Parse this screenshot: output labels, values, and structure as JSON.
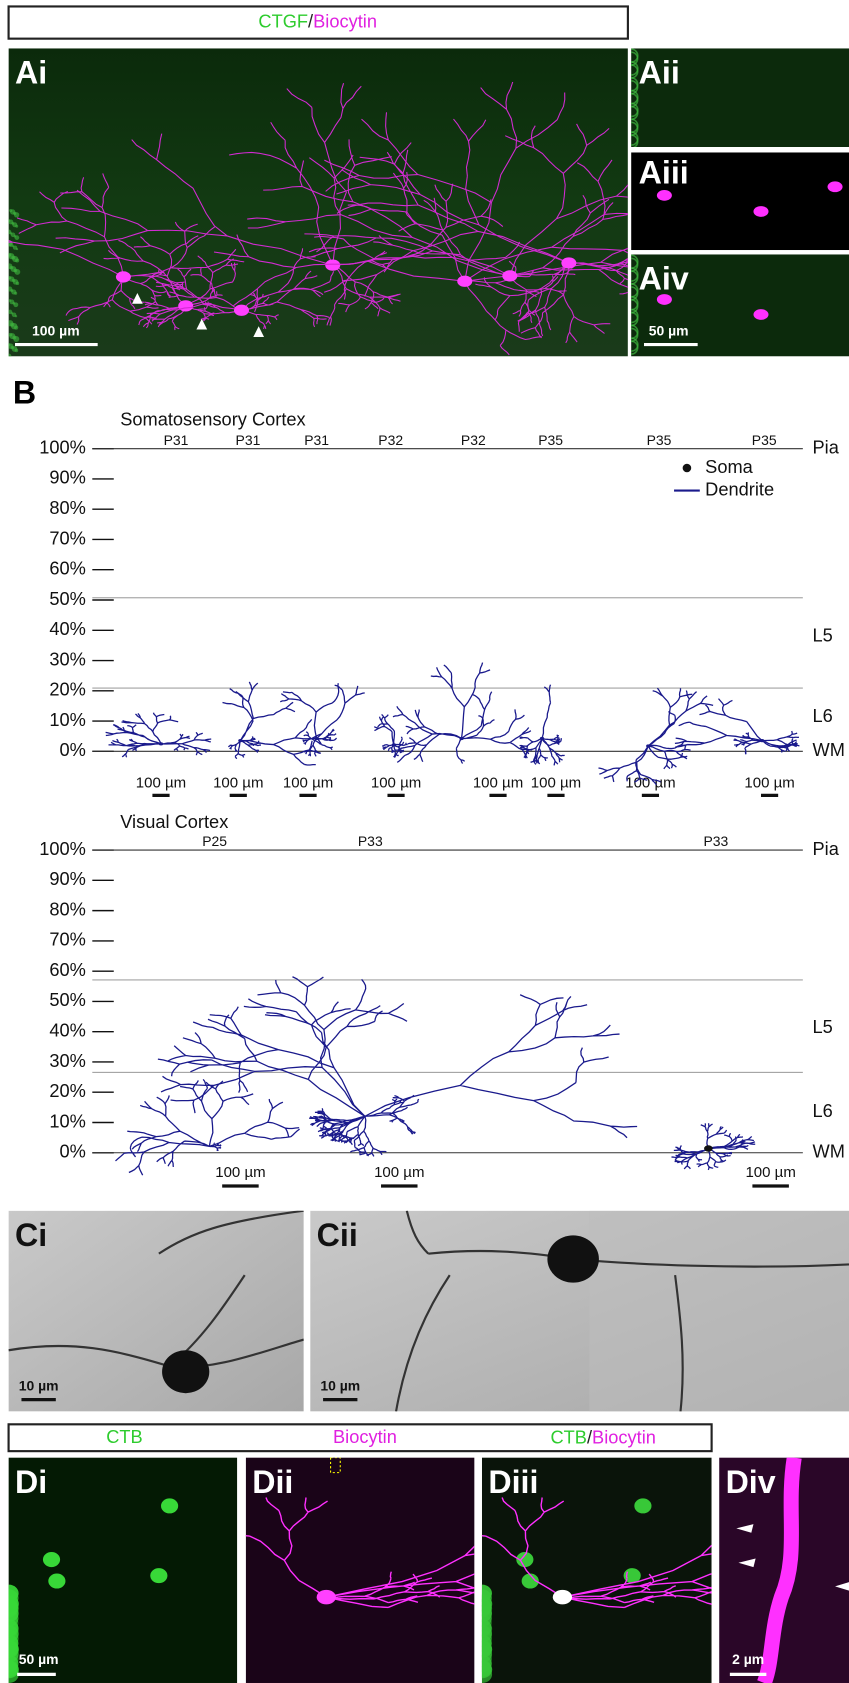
{
  "panel_a": {
    "header": {
      "stain1": "CTGF",
      "separator": "/",
      "stain2": "Biocytin"
    },
    "labels": [
      "Ai",
      "Aii",
      "Aiii",
      "Aiv"
    ],
    "scale_bars": [
      "100 µm",
      "50 µm"
    ]
  },
  "panel_b": {
    "label": "B",
    "y_labels": [
      "100%",
      "90%",
      "80%",
      "70%",
      "60%",
      "50%",
      "40%",
      "30%",
      "20%",
      "10%",
      "0%"
    ],
    "layers": [
      "Pia",
      "L5",
      "L6",
      "WM"
    ],
    "legend": [
      "Soma",
      "Dendrite"
    ],
    "somatosensory": {
      "title": "Somatosensory Cortex",
      "ages": [
        "P31",
        "P31",
        "P31",
        "P32",
        "P32",
        "P35",
        "P35",
        "P35"
      ],
      "scale_bars": [
        "100 µm",
        "100 µm",
        "100 µm",
        "100 µm",
        "100 µm",
        "100 µm",
        "100 µm",
        "100 µm"
      ]
    },
    "visual": {
      "title": "Visual Cortex",
      "ages": [
        "P25",
        "P33",
        "P33"
      ],
      "scale_bars": [
        "100 µm",
        "100 µm",
        "100 µm"
      ]
    }
  },
  "panel_c": {
    "labels": [
      "Ci",
      "Cii"
    ],
    "scale_bars": [
      "10 µm",
      "10 µm"
    ]
  },
  "panel_d": {
    "header": {
      "stain1": "CTB",
      "stain2": "Biocytin",
      "merge1": "CTB",
      "separator": "/",
      "merge2": "Biocytin"
    },
    "labels": [
      "Di",
      "Dii",
      "Diii",
      "Div"
    ],
    "scale_bars": [
      "50 µm",
      "2 µm"
    ]
  }
}
